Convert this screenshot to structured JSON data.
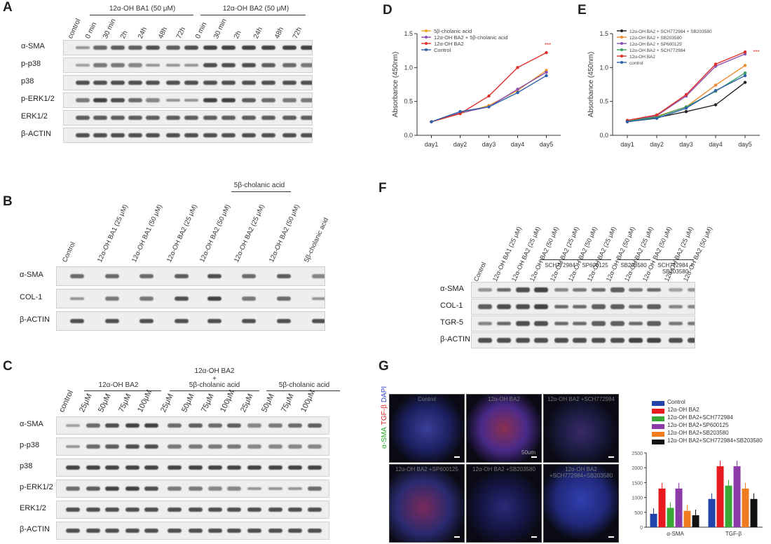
{
  "panels": {
    "A": {
      "letter": "A",
      "group1": "12α-OH BA1 (50 μM)",
      "group2": "12α-OH BA2 (50 μM)",
      "lanes": [
        "control",
        "0 min",
        "30 min",
        "2h",
        "24h",
        "48h",
        "72h",
        "0 min",
        "30 min",
        "2h",
        "24h",
        "48h",
        "72h"
      ],
      "rows": [
        "α-SMA",
        "p-p38",
        "p38",
        "p-ERK1/2",
        "ERK1/2",
        "β-ACTIN"
      ]
    },
    "B": {
      "letter": "B",
      "group": "5β-cholanic acid",
      "lanes": [
        "Control",
        "12α-OH BA1 (25 μM)",
        "12α-OH BA1 (50 μM)",
        "12α-OH BA2 (25 μM)",
        "12α-OH BA2 (50 μM)",
        "12α-OH BA2 (25 μM)",
        "12α-OH BA2 (50 μM)",
        "5β-cholanic acid"
      ],
      "rows": [
        "α-SMA",
        "COL-1",
        "β-ACTIN"
      ]
    },
    "C": {
      "letter": "C",
      "top_label": "12α-OH BA2",
      "plus": "+",
      "group1": "12α-OH BA2",
      "group2": "5β-cholanic acid",
      "group3": "5β-cholanic acid",
      "lanes": [
        "control",
        "25μM",
        "50μM",
        "75μM",
        "100μM",
        "25μM",
        "50μM",
        "75μM",
        "100μM",
        "25μM",
        "50μM",
        "75μM",
        "100μM"
      ],
      "rows": [
        "α-SMA",
        "p-p38",
        "p38",
        "p-ERK1/2",
        "ERK1/2",
        "β-ACTIN"
      ]
    },
    "D": {
      "letter": "D",
      "ylabel": "Absorbance (450nm)",
      "legend": [
        "5β-cholanic acid",
        "12α-OH BA2 + 5β-cholanic acid",
        "12α-OH BA2",
        "Control"
      ],
      "sig": "***"
    },
    "E": {
      "letter": "E",
      "ylabel": "Absorbance (450nm)",
      "legend": [
        "12α-OH BA2 + SCH772984 + SB203580",
        "12α-OH BA2 + SB203580",
        "12α-OH BA2 + SP600125",
        "12α-OH BA2 + SCH772984",
        "12α-OH BA2",
        "control"
      ],
      "sig": "***"
    },
    "F": {
      "letter": "F",
      "lanes": [
        "Control",
        "12α-OH BA1 (25 μM)",
        "12α-OH BA2 (25 μM)",
        "12α-OH BA2 (50 μM)",
        "12α-OH BA2 (25 μM)",
        "12α-OH BA2 (50 μM)",
        "12α-OH BA2 (25 μM)",
        "12α-OH BA2 (50 μM)",
        "12α-OH BA2 (25 μM)",
        "12α-OH BA2 (50 μM)",
        "12α-OH BA2 (25 μM)",
        "12α-OH BA2 (50 μM)"
      ],
      "inhibitors": [
        "SCH772984",
        "SP600125",
        "SB203580",
        "SCH772984 + SB203580"
      ],
      "rows": [
        "α-SMA",
        "COL-1",
        "TGR-5",
        "β-ACTIN"
      ]
    },
    "G": {
      "letter": "G",
      "stain": [
        "α-SMA",
        "TGF-β",
        "DAPI"
      ],
      "images": [
        "Control",
        "12α-OH BA2",
        "12α-OH BA2 +SCH772984",
        "12α-OH BA2 +SP600125",
        "12α-OH BA2 +SB203580",
        "12α-OH BA2 +SCH772984+SB203580"
      ],
      "scale": "50um",
      "legend": [
        "Control",
        "12α-OH BA2",
        "12α-OH BA2+SCH772984",
        "12α-OH BA2+SP600125",
        "12α-OH BA2+SB203580",
        "12α-OH BA2+SCH772984+SB203580"
      ],
      "legend_colors": [
        "#2244aa",
        "#e8191f",
        "#3aa835",
        "#8b3aa8",
        "#f07c1f",
        "#111111"
      ],
      "bar_groups": [
        "α-SMA",
        "TGF-β"
      ]
    }
  },
  "chart_data": [
    {
      "type": "line",
      "panel": "D",
      "x": [
        "day1",
        "day2",
        "day3",
        "day4",
        "day5"
      ],
      "ylabel": "Absorbance (450nm)",
      "ylim": [
        0,
        1.5
      ],
      "yticks": [
        "0.0",
        "0.5",
        "1.0",
        "1.5"
      ],
      "series": [
        {
          "name": "5β-cholanic acid",
          "color": "#f0a030",
          "values": [
            0.2,
            0.32,
            0.44,
            0.66,
            0.96
          ]
        },
        {
          "name": "12α-OH BA2 + 5β-cholanic acid",
          "color": "#8a4fb0",
          "values": [
            0.2,
            0.33,
            0.42,
            0.68,
            0.93
          ]
        },
        {
          "name": "12α-OH BA2",
          "color": "#e0302a",
          "values": [
            0.2,
            0.32,
            0.58,
            1.0,
            1.22
          ]
        },
        {
          "name": "Control",
          "color": "#3060a8",
          "values": [
            0.2,
            0.35,
            0.42,
            0.63,
            0.88
          ]
        }
      ]
    },
    {
      "type": "line",
      "panel": "E",
      "x": [
        "day1",
        "day2",
        "day3",
        "day4",
        "day5"
      ],
      "ylabel": "Absorbance (450nm)",
      "ylim": [
        0,
        1.5
      ],
      "yticks": [
        "0.0",
        "0.5",
        "1.0",
        "1.5"
      ],
      "series": [
        {
          "name": "12α-OH BA2 + SCH772984 + SB203580",
          "color": "#222222",
          "values": [
            0.2,
            0.26,
            0.35,
            0.45,
            0.78
          ]
        },
        {
          "name": "12α-OH BA2 + SB203580",
          "color": "#f08a30",
          "values": [
            0.21,
            0.28,
            0.42,
            0.74,
            1.03
          ]
        },
        {
          "name": "12α-OH BA2 + SP600125",
          "color": "#8a4fb0",
          "values": [
            0.21,
            0.29,
            0.58,
            1.02,
            1.2
          ]
        },
        {
          "name": "12α-OH BA2 + SCH772984",
          "color": "#3aa060",
          "values": [
            0.21,
            0.27,
            0.42,
            0.65,
            0.92
          ]
        },
        {
          "name": "12α-OH BA2",
          "color": "#e0302a",
          "values": [
            0.22,
            0.3,
            0.6,
            1.05,
            1.23
          ]
        },
        {
          "name": "control",
          "color": "#3060a8",
          "values": [
            0.2,
            0.25,
            0.4,
            0.66,
            0.88
          ]
        }
      ]
    },
    {
      "type": "bar",
      "panel": "G",
      "categories": [
        "α-SMA",
        "TGF-β"
      ],
      "ylim": [
        0,
        2500
      ],
      "yticks": [
        "0",
        "500",
        "1000",
        "1500",
        "2000",
        "2500"
      ],
      "series": [
        {
          "name": "Control",
          "values": [
            450,
            950
          ]
        },
        {
          "name": "12α-OH BA2",
          "values": [
            1300,
            2050
          ]
        },
        {
          "name": "12α-OH BA2+SCH772984",
          "values": [
            650,
            1400
          ]
        },
        {
          "name": "12α-OH BA2+SP600125",
          "values": [
            1300,
            2050
          ]
        },
        {
          "name": "12α-OH BA2+SB203580",
          "values": [
            550,
            1300
          ]
        },
        {
          "name": "12α-OH BA2+SCH772984+SB203580",
          "values": [
            400,
            950
          ]
        }
      ]
    }
  ]
}
